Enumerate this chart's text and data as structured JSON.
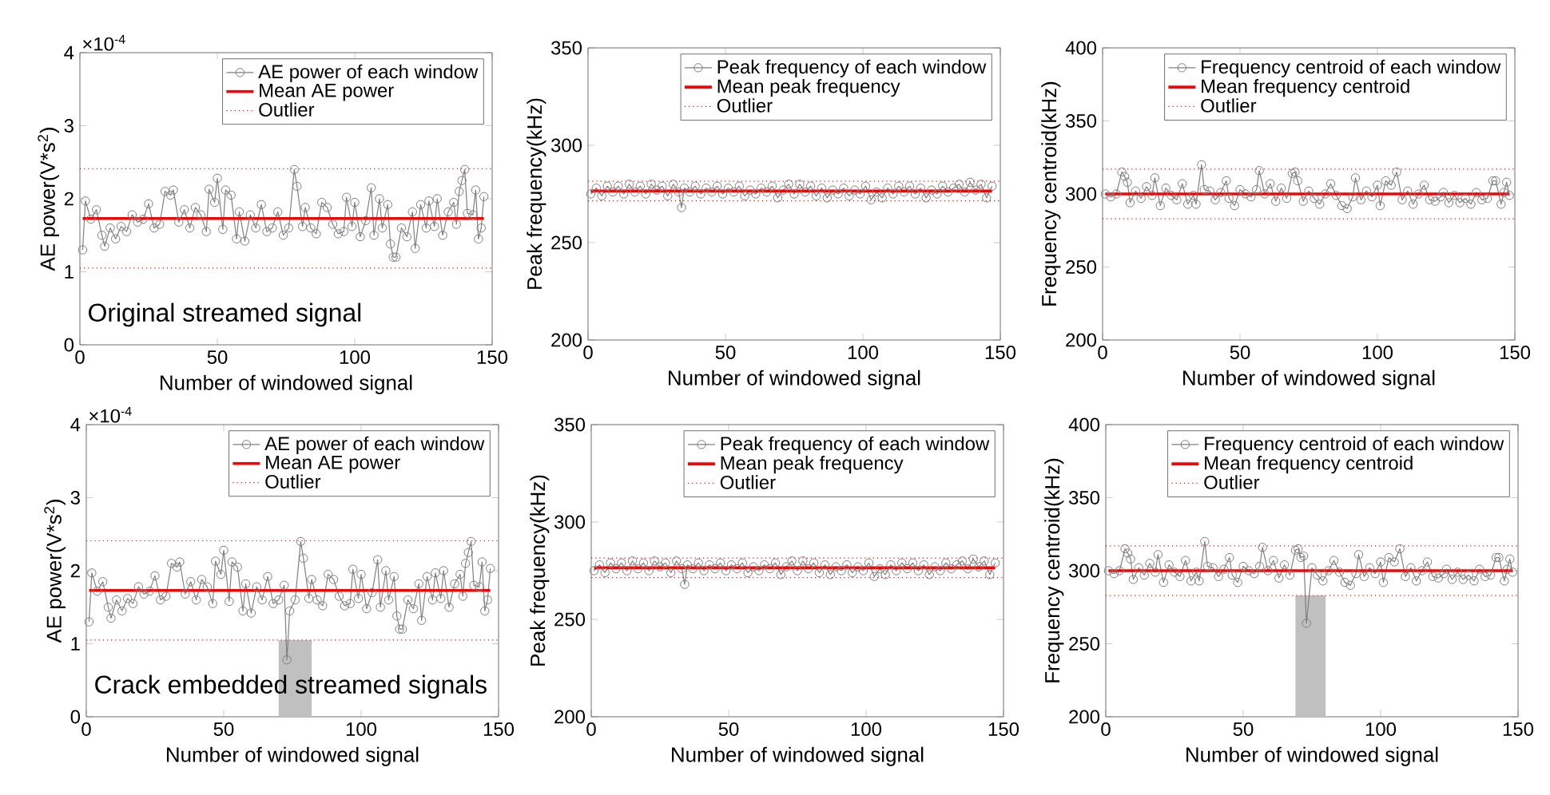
{
  "chart_data": [
    {
      "type": "line",
      "xlabel": "Number of windowed signal",
      "ylabel": "AE power(V*s$^{2}$)",
      "xlim": [
        0,
        150
      ],
      "xticks": [
        0,
        50,
        100,
        150
      ],
      "ylim": [
        0,
        4
      ],
      "yticks": [
        0,
        1,
        2,
        3,
        4
      ],
      "legend": "top right",
      "marker": "circle",
      "line_style": "solid",
      "annotations": [
        "×10$^{-4}$",
        "Original streamed signal"
      ],
      "series": [
        {
          "name": "AE power of each window",
          "color": "#808080",
          "x": [
            1,
            2,
            4,
            6,
            8,
            9,
            11,
            13,
            15,
            17,
            19,
            21,
            23,
            25,
            27,
            29,
            31,
            33,
            34,
            36,
            38,
            40,
            42,
            44,
            46,
            47,
            49,
            50,
            52,
            53,
            55,
            57,
            58,
            60,
            62,
            64,
            66,
            68,
            70,
            72,
            74,
            76,
            78,
            79,
            81,
            82,
            84,
            86,
            88,
            90,
            92,
            94,
            96,
            97,
            99,
            100,
            102,
            104,
            106,
            107,
            109,
            110,
            112,
            113,
            114,
            115,
            117,
            119,
            121,
            122,
            124,
            126,
            127,
            129,
            130,
            132,
            134,
            136,
            137,
            138,
            139,
            140,
            141,
            143,
            144,
            145,
            146,
            147
          ],
          "values": [
            1.3,
            1.97,
            1.72,
            1.85,
            1.5,
            1.35,
            1.6,
            1.45,
            1.62,
            1.55,
            1.78,
            1.68,
            1.72,
            1.93,
            1.6,
            1.65,
            2.1,
            2.05,
            2.12,
            1.68,
            1.85,
            1.6,
            1.88,
            1.78,
            1.55,
            2.13,
            1.95,
            2.28,
            1.58,
            2.12,
            2.05,
            1.45,
            1.82,
            1.42,
            1.78,
            1.6,
            1.92,
            1.55,
            1.6,
            1.82,
            1.5,
            1.6,
            2.4,
            2.17,
            1.62,
            1.88,
            1.6,
            1.52,
            1.95,
            1.88,
            1.65,
            1.52,
            1.55,
            2.02,
            1.62,
            1.95,
            1.48,
            1.7,
            2.15,
            1.5,
            2.0,
            1.6,
            1.92,
            1.38,
            1.2,
            1.2,
            1.6,
            1.48,
            1.82,
            1.32,
            1.92,
            1.6,
            1.97,
            1.62,
            2.0,
            1.5,
            1.82,
            1.95,
            1.65,
            2.1,
            2.25,
            2.4,
            1.8,
            1.78,
            2.12,
            1.45,
            1.6,
            2.03
          ]
        }
      ],
      "ref_lines": [
        {
          "axis": "y",
          "value": 1.73,
          "label": "Mean AE power",
          "color": "#ff0000",
          "line_style": "solid"
        },
        {
          "axis": "y",
          "value": 2.41,
          "label": "Outlier",
          "color": "#ff0000",
          "line_style": "dotted"
        },
        {
          "axis": "y",
          "value": 1.05,
          "color": "#ff0000",
          "line_style": "dotted"
        }
      ]
    },
    {
      "type": "line",
      "xlabel": "Number of windowed signal",
      "ylabel": "Peak frequency(kHz)",
      "xlim": [
        0,
        150
      ],
      "xticks": [
        0,
        50,
        100,
        150
      ],
      "ylim": [
        200,
        350
      ],
      "yticks": [
        200,
        250,
        300,
        350
      ],
      "legend": "top right",
      "marker": "circle",
      "line_style": "solid",
      "series": [
        {
          "name": "Peak frequency of each window",
          "color": "#808080",
          "x": [
            1,
            3,
            5,
            7,
            9,
            11,
            13,
            15,
            17,
            19,
            21,
            23,
            25,
            27,
            29,
            31,
            33,
            34,
            35,
            37,
            39,
            41,
            43,
            45,
            47,
            49,
            51,
            53,
            55,
            57,
            59,
            61,
            63,
            65,
            67,
            69,
            71,
            73,
            75,
            77,
            79,
            81,
            83,
            85,
            87,
            89,
            91,
            93,
            95,
            97,
            99,
            101,
            103,
            105,
            107,
            109,
            111,
            113,
            115,
            117,
            119,
            121,
            123,
            125,
            127,
            129,
            131,
            133,
            135,
            137,
            139,
            141,
            143,
            145,
            147
          ],
          "values": [
            275,
            278,
            274,
            279,
            276,
            279,
            275,
            280,
            276,
            279,
            275,
            280,
            277,
            279,
            274,
            280,
            276,
            268,
            278,
            276,
            279,
            275,
            278,
            276,
            279,
            275,
            278,
            276,
            279,
            274,
            277,
            275,
            278,
            276,
            279,
            273,
            277,
            280,
            275,
            280,
            276,
            279,
            274,
            278,
            273,
            277,
            275,
            278,
            274,
            277,
            275,
            279,
            272,
            276,
            273,
            278,
            275,
            279,
            276,
            279,
            275,
            278,
            273,
            277,
            275,
            279,
            276,
            278,
            280,
            276,
            281,
            277,
            280,
            273,
            279
          ]
        }
      ],
      "ref_lines": [
        {
          "axis": "y",
          "value": 276.5,
          "label": "Mean peak frequency",
          "color": "#ff0000",
          "line_style": "solid"
        },
        {
          "axis": "y",
          "value": 281.5,
          "label": "Outlier",
          "color": "#ff0000",
          "line_style": "dotted"
        },
        {
          "axis": "y",
          "value": 271.5,
          "color": "#ff0000",
          "line_style": "dotted"
        }
      ]
    },
    {
      "type": "line",
      "xlabel": "Number of windowed signal",
      "ylabel": "Frequency centroid(kHz)",
      "xlim": [
        0,
        150
      ],
      "xticks": [
        0,
        50,
        100,
        150
      ],
      "ylim": [
        200,
        400
      ],
      "yticks": [
        200,
        250,
        300,
        350,
        400
      ],
      "legend": "top right",
      "marker": "circle",
      "line_style": "solid",
      "series": [
        {
          "name": "Frequency centroid of each window",
          "color": "#808080",
          "x": [
            1,
            3,
            5,
            7,
            8,
            9,
            10,
            12,
            14,
            16,
            18,
            19,
            21,
            23,
            25,
            27,
            29,
            31,
            33,
            34,
            36,
            37,
            39,
            41,
            43,
            45,
            46,
            48,
            50,
            52,
            54,
            56,
            57,
            59,
            61,
            63,
            65,
            67,
            69,
            70,
            71,
            73,
            75,
            77,
            79,
            81,
            83,
            85,
            87,
            89,
            91,
            92,
            94,
            96,
            98,
            100,
            101,
            103,
            105,
            107,
            109,
            111,
            113,
            115,
            117,
            119,
            121,
            123,
            124,
            126,
            128,
            130,
            132,
            134,
            136,
            138,
            140,
            142,
            143,
            145,
            146,
            147,
            148
          ],
          "values": [
            300,
            298,
            300,
            315,
            312,
            308,
            294,
            302,
            297,
            305,
            299,
            311,
            292,
            304,
            299,
            296,
            307,
            293,
            299,
            293,
            320,
            303,
            302,
            296,
            301,
            309,
            297,
            292,
            303,
            300,
            298,
            303,
            316,
            300,
            307,
            295,
            304,
            297,
            314,
            315,
            309,
            295,
            302,
            297,
            293,
            300,
            307,
            299,
            292,
            290,
            298,
            311,
            296,
            302,
            298,
            306,
            292,
            309,
            306,
            315,
            296,
            302,
            293,
            300,
            306,
            296,
            295,
            298,
            301,
            294,
            299,
            294,
            297,
            293,
            301,
            296,
            297,
            309,
            309,
            293,
            301,
            308,
            299
          ]
        }
      ],
      "ref_lines": [
        {
          "axis": "y",
          "value": 300,
          "label": "Mean frequency centroid",
          "color": "#ff0000",
          "line_style": "solid"
        },
        {
          "axis": "y",
          "value": 317,
          "label": "Outlier",
          "color": "#ff0000",
          "line_style": "dotted"
        },
        {
          "axis": "y",
          "value": 283,
          "color": "#ff0000",
          "line_style": "dotted"
        }
      ]
    },
    {
      "type": "line",
      "xlabel": "Number of windowed signal",
      "ylabel": "AE power(V*s$^{2}$)",
      "xlim": [
        0,
        150
      ],
      "xticks": [
        0,
        50,
        100,
        150
      ],
      "ylim": [
        0,
        4
      ],
      "yticks": [
        0,
        1,
        2,
        3,
        4
      ],
      "legend": "top right",
      "marker": "circle",
      "line_style": "solid",
      "annotations": [
        "×10$^{-4}$",
        "Crack embedded streamed  signals"
      ],
      "bands": [
        {
          "axis": "x",
          "from": 70,
          "to": 82,
          "color": "#c0c0c0"
        }
      ],
      "series": [
        {
          "name": "AE power of each window",
          "color": "#808080",
          "x": [
            1,
            2,
            4,
            6,
            8,
            9,
            11,
            13,
            15,
            17,
            19,
            21,
            23,
            25,
            27,
            29,
            31,
            33,
            34,
            36,
            38,
            40,
            42,
            44,
            46,
            47,
            49,
            50,
            52,
            53,
            55,
            57,
            58,
            60,
            62,
            64,
            66,
            68,
            70,
            72,
            73,
            74,
            76,
            78,
            79,
            81,
            82,
            84,
            86,
            88,
            90,
            92,
            94,
            96,
            97,
            99,
            100,
            102,
            104,
            106,
            107,
            109,
            110,
            112,
            113,
            114,
            115,
            117,
            119,
            121,
            122,
            124,
            126,
            127,
            129,
            130,
            132,
            134,
            136,
            137,
            138,
            139,
            140,
            141,
            143,
            144,
            145,
            146,
            147
          ],
          "values": [
            1.3,
            1.97,
            1.72,
            1.85,
            1.5,
            1.35,
            1.6,
            1.45,
            1.62,
            1.55,
            1.78,
            1.68,
            1.72,
            1.93,
            1.6,
            1.65,
            2.1,
            2.05,
            2.12,
            1.68,
            1.85,
            1.6,
            1.88,
            1.78,
            1.55,
            2.13,
            1.95,
            2.28,
            1.58,
            2.12,
            2.05,
            1.45,
            1.82,
            1.42,
            1.78,
            1.6,
            1.92,
            1.55,
            1.6,
            1.8,
            0.78,
            1.45,
            1.6,
            2.4,
            2.17,
            1.62,
            1.88,
            1.6,
            1.52,
            1.95,
            1.88,
            1.65,
            1.52,
            1.55,
            2.02,
            1.62,
            1.95,
            1.48,
            1.7,
            2.15,
            1.5,
            2.0,
            1.6,
            1.92,
            1.38,
            1.2,
            1.2,
            1.6,
            1.48,
            1.82,
            1.32,
            1.92,
            1.6,
            1.97,
            1.62,
            2.0,
            1.5,
            1.82,
            1.95,
            1.65,
            2.1,
            2.25,
            2.4,
            1.8,
            1.78,
            2.12,
            1.45,
            1.6,
            2.03
          ]
        }
      ],
      "ref_lines": [
        {
          "axis": "y",
          "value": 1.73,
          "label": "Mean AE power",
          "color": "#ff0000",
          "line_style": "solid"
        },
        {
          "axis": "y",
          "value": 2.41,
          "label": "Outlier",
          "color": "#ff0000",
          "line_style": "dotted"
        },
        {
          "axis": "y",
          "value": 1.05,
          "color": "#ff0000",
          "line_style": "dotted"
        }
      ]
    },
    {
      "type": "line",
      "xlabel": "Number of windowed signal",
      "ylabel": "Peak frequency(kHz)",
      "xlim": [
        0,
        150
      ],
      "xticks": [
        0,
        50,
        100,
        150
      ],
      "ylim": [
        200,
        350
      ],
      "yticks": [
        200,
        250,
        300,
        350
      ],
      "legend": "top right",
      "marker": "circle",
      "line_style": "solid",
      "series": [
        {
          "name": "Peak frequency of each window",
          "color": "#808080",
          "x": [
            1,
            3,
            5,
            7,
            9,
            11,
            13,
            15,
            17,
            19,
            21,
            23,
            25,
            27,
            29,
            31,
            33,
            34,
            35,
            37,
            39,
            41,
            43,
            45,
            47,
            49,
            51,
            53,
            55,
            57,
            59,
            61,
            63,
            65,
            67,
            69,
            71,
            73,
            75,
            77,
            79,
            81,
            83,
            85,
            87,
            89,
            91,
            93,
            95,
            97,
            99,
            101,
            103,
            105,
            107,
            109,
            111,
            113,
            115,
            117,
            119,
            121,
            123,
            125,
            127,
            129,
            131,
            133,
            135,
            137,
            139,
            141,
            143,
            145,
            147
          ],
          "values": [
            275,
            278,
            274,
            279,
            276,
            279,
            275,
            280,
            276,
            279,
            275,
            280,
            277,
            279,
            274,
            280,
            276,
            268,
            278,
            276,
            279,
            275,
            278,
            276,
            279,
            275,
            278,
            276,
            279,
            274,
            277,
            275,
            278,
            276,
            279,
            273,
            277,
            280,
            275,
            280,
            276,
            279,
            274,
            278,
            273,
            277,
            275,
            278,
            274,
            277,
            275,
            279,
            272,
            276,
            273,
            278,
            275,
            279,
            276,
            279,
            275,
            278,
            273,
            277,
            275,
            279,
            276,
            278,
            280,
            276,
            281,
            277,
            280,
            273,
            279
          ]
        }
      ],
      "ref_lines": [
        {
          "axis": "y",
          "value": 276.5,
          "label": "Mean peak frequency",
          "color": "#ff0000",
          "line_style": "solid"
        },
        {
          "axis": "y",
          "value": 281.5,
          "label": "Outlier",
          "color": "#ff0000",
          "line_style": "dotted"
        },
        {
          "axis": "y",
          "value": 271.5,
          "color": "#ff0000",
          "line_style": "dotted"
        }
      ]
    },
    {
      "type": "line",
      "xlabel": "Number of windowed signal",
      "ylabel": "Frequency centroid(kHz)",
      "xlim": [
        0,
        150
      ],
      "xticks": [
        0,
        50,
        100,
        150
      ],
      "ylim": [
        200,
        400
      ],
      "yticks": [
        200,
        250,
        300,
        350,
        400
      ],
      "legend": "top right",
      "marker": "circle",
      "line_style": "solid",
      "bands": [
        {
          "axis": "x",
          "from": 69,
          "to": 80,
          "color": "#c0c0c0"
        }
      ],
      "series": [
        {
          "name": "Frequency centroid of each window",
          "color": "#808080",
          "x": [
            1,
            3,
            5,
            7,
            8,
            9,
            10,
            12,
            14,
            16,
            18,
            19,
            21,
            23,
            25,
            27,
            29,
            31,
            33,
            34,
            36,
            37,
            39,
            41,
            43,
            45,
            46,
            48,
            50,
            52,
            54,
            56,
            57,
            59,
            61,
            63,
            65,
            67,
            69,
            70,
            71,
            72,
            73,
            75,
            77,
            79,
            81,
            83,
            85,
            87,
            89,
            91,
            92,
            94,
            96,
            98,
            100,
            101,
            103,
            105,
            107,
            109,
            111,
            113,
            115,
            117,
            119,
            121,
            123,
            124,
            126,
            128,
            130,
            132,
            134,
            136,
            138,
            140,
            142,
            143,
            145,
            146,
            147,
            148
          ],
          "values": [
            300,
            298,
            300,
            315,
            312,
            308,
            294,
            302,
            297,
            305,
            299,
            311,
            292,
            304,
            299,
            296,
            307,
            293,
            299,
            293,
            320,
            303,
            302,
            296,
            301,
            309,
            297,
            292,
            303,
            300,
            298,
            303,
            316,
            300,
            307,
            295,
            304,
            297,
            314,
            315,
            309,
            310,
            264,
            302,
            297,
            293,
            300,
            307,
            299,
            292,
            290,
            298,
            311,
            296,
            302,
            298,
            306,
            292,
            309,
            306,
            315,
            296,
            302,
            293,
            300,
            306,
            296,
            295,
            298,
            301,
            294,
            299,
            294,
            297,
            293,
            301,
            296,
            297,
            309,
            309,
            293,
            301,
            308,
            299
          ]
        }
      ],
      "ref_lines": [
        {
          "axis": "y",
          "value": 300,
          "label": "Mean frequency centroid",
          "color": "#ff0000",
          "line_style": "solid"
        },
        {
          "axis": "y",
          "value": 317,
          "label": "Outlier",
          "color": "#ff0000",
          "line_style": "dotted"
        },
        {
          "axis": "y",
          "value": 283,
          "color": "#ff0000",
          "line_style": "dotted"
        }
      ]
    }
  ]
}
